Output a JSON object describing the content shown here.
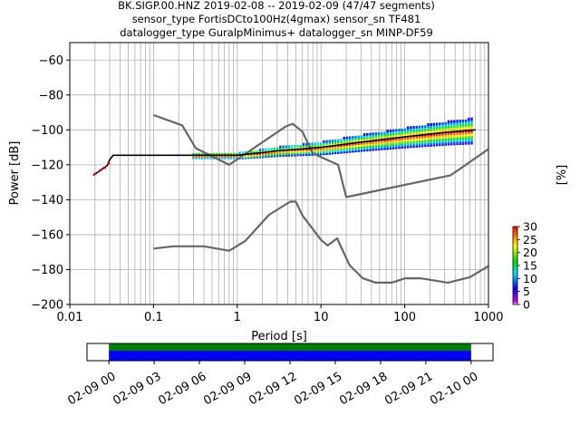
{
  "chart_data": [
    {
      "type": "heatmap",
      "title_lines": [
        "BK.SIGP.00.HNZ   2019-02-08 -- 2019-02-09  (47/47 segments)",
        "sensor_type FortisDCto100Hz(4gmax) sensor_sn TF481",
        "datalogger_type GuralpMinimus+ datalogger_sn MINP-DF59"
      ],
      "xlabel": "Period [s]",
      "ylabel": "Power [dB]",
      "xscale": "log",
      "xlim": [
        0.01,
        1000
      ],
      "ylim": [
        -200,
        -50
      ],
      "x_ticks": [
        {
          "value": 0.01,
          "label": "0.01"
        },
        {
          "value": 0.1,
          "label": "0.1"
        },
        {
          "value": 1,
          "label": "1"
        },
        {
          "value": 10,
          "label": "10"
        },
        {
          "value": 100,
          "label": "100"
        },
        {
          "value": 1000,
          "label": "1000"
        }
      ],
      "y_ticks": [
        -200,
        -180,
        -160,
        -140,
        -120,
        -100,
        -80,
        -60
      ],
      "grid": true,
      "colorbar": {
        "label": "[%]",
        "range": [
          0,
          30
        ],
        "ticks": [
          0,
          5,
          10,
          15,
          20,
          25,
          30
        ]
      },
      "series": [
        {
          "type": "noise-model",
          "color": "#666666",
          "points": [
            [
              0.1,
              -91.5
            ],
            [
              0.22,
              -97.4
            ],
            [
              0.32,
              -110.5
            ],
            [
              0.8,
              -120
            ],
            [
              3.8,
              -98
            ],
            [
              4.6,
              -96.5
            ],
            [
              6,
              -101
            ],
            [
              8,
              -113.5
            ],
            [
              16,
              -120
            ],
            [
              20,
              -138.5
            ],
            [
              354,
              -126
            ],
            [
              1000,
              -111
            ]
          ]
        },
        {
          "type": "noise-model",
          "color": "#666666",
          "points": [
            [
              0.1,
              -168
            ],
            [
              0.17,
              -166.7
            ],
            [
              0.4,
              -166.7
            ],
            [
              0.8,
              -169.2
            ],
            [
              1.24,
              -163.7
            ],
            [
              2.4,
              -148.6
            ],
            [
              4.3,
              -141.1
            ],
            [
              5,
              -141.1
            ],
            [
              6,
              -149
            ],
            [
              10,
              -163
            ],
            [
              12,
              -166.2
            ],
            [
              15.6,
              -162.1
            ],
            [
              21.9,
              -177.5
            ],
            [
              31.6,
              -185
            ],
            [
              45,
              -187.5
            ],
            [
              70,
              -187.5
            ],
            [
              101,
              -185
            ],
            [
              154,
              -185
            ],
            [
              328,
              -187.5
            ],
            [
              600,
              -184.4
            ],
            [
              1000,
              -178
            ]
          ]
        },
        {
          "type": "psd-median",
          "color": "#000000",
          "points": [
            [
              0.019,
              -126
            ],
            [
              0.022,
              -124
            ],
            [
              0.025,
              -122
            ],
            [
              0.028,
              -120.5
            ],
            [
              0.03,
              -117
            ],
            [
              0.033,
              -114.5
            ],
            [
              0.1,
              -114.5
            ],
            [
              1,
              -114.5
            ],
            [
              3,
              -112
            ],
            [
              10,
              -110
            ],
            [
              30,
              -107
            ],
            [
              100,
              -104
            ],
            [
              300,
              -101.5
            ],
            [
              700,
              -100
            ]
          ]
        }
      ]
    },
    {
      "type": "bar",
      "role": "data availability timeline",
      "x_ticks": [
        "02-09 00",
        "02-09 03",
        "02-09 06",
        "02-09 09",
        "02-09 12",
        "02-09 15",
        "02-09 18",
        "02-09 21",
        "02-10 00"
      ],
      "xlim": [
        "02-08 22:33",
        "02-10 01:27"
      ],
      "series": [
        {
          "color": "#008000",
          "start": "02-09 00",
          "end": "02-10 00"
        },
        {
          "color": "#0000ff",
          "start": "02-09 00",
          "end": "02-10 00"
        }
      ]
    }
  ]
}
